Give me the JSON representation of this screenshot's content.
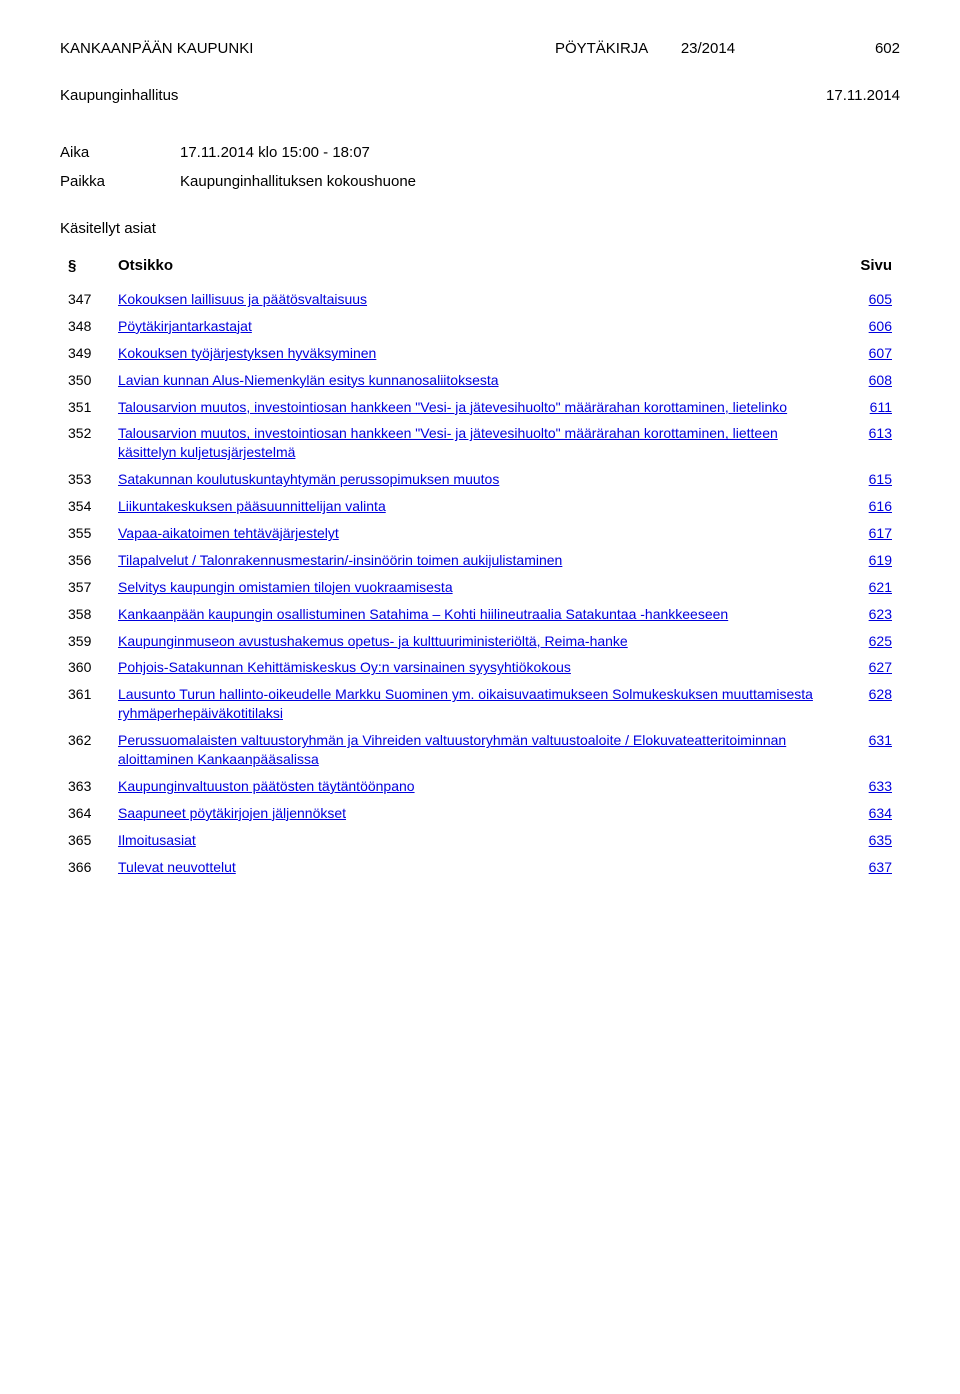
{
  "header": {
    "org": "KANKAANPÄÄN KAUPUNKI",
    "doc_type": "PÖYTÄKIRJA",
    "doc_num": "23/2014",
    "page_num": "602",
    "committee": "Kaupunginhallitus",
    "date": "17.11.2014"
  },
  "meeting": {
    "time_label": "Aika",
    "time_value": "17.11.2014 klo 15:00 - 18:07",
    "place_label": "Paikka",
    "place_value": "Kaupunginhallituksen kokoushuone"
  },
  "agenda": {
    "section_title": "Käsitellyt asiat",
    "columns": {
      "section": "§",
      "title": "Otsikko",
      "page": "Sivu"
    },
    "items": [
      {
        "num": "347",
        "title": "Kokouksen laillisuus ja päätösvaltaisuus",
        "page": "605"
      },
      {
        "num": "348",
        "title": "Pöytäkirjantarkastajat",
        "page": "606"
      },
      {
        "num": "349",
        "title": "Kokouksen työjärjestyksen hyväksyminen",
        "page": "607"
      },
      {
        "num": "350",
        "title": "Lavian kunnan Alus-Niemenkylän esitys kunnanosaliitoksesta",
        "page": "608"
      },
      {
        "num": "351",
        "title": "Talousarvion muutos, investointiosan hankkeen \"Vesi- ja jätevesihuolto\" määrärahan korottaminen, lietelinko",
        "page": "611"
      },
      {
        "num": "352",
        "title": "Talousarvion muutos, investointiosan hankkeen \"Vesi- ja jätevesihuolto\" määrärahan korottaminen, lietteen käsittelyn kuljetusjärjestelmä",
        "page": "613"
      },
      {
        "num": "353",
        "title": "Satakunnan koulutuskuntayhtymän perussopimuksen muutos",
        "page": "615"
      },
      {
        "num": "354",
        "title": "Liikuntakeskuksen pääsuunnittelijan valinta",
        "page": "616"
      },
      {
        "num": "355",
        "title": "Vapaa-aikatoimen tehtäväjärjestelyt",
        "page": "617"
      },
      {
        "num": "356",
        "title": "Tilapalvelut / Talonrakennusmestarin/-insinöörin toimen aukijulistaminen",
        "page": "619"
      },
      {
        "num": "357",
        "title": "Selvitys kaupungin omistamien tilojen vuokraamisesta",
        "page": "621"
      },
      {
        "num": "358",
        "title": "Kankaanpään kaupungin osallistuminen Satahima – Kohti hiilineutraalia Satakuntaa -hankkeeseen",
        "page": "623"
      },
      {
        "num": "359",
        "title": "Kaupunginmuseon avustushakemus opetus- ja kulttuuriministeriöltä, Reima-hanke",
        "page": "625"
      },
      {
        "num": "360",
        "title": "Pohjois-Satakunnan Kehittämiskeskus Oy:n varsinainen syysyhtiökokous",
        "page": "627"
      },
      {
        "num": "361",
        "title": "Lausunto Turun hallinto-oikeudelle Markku Suominen ym. oikaisuvaatimukseen Solmukeskuksen muuttamisesta ryhmäperhepäiväkotitilaksi",
        "page": "628"
      },
      {
        "num": "362",
        "title": "Perussuomalaisten valtuustoryhmän ja Vihreiden valtuustoryhmän valtuustoaloite / Elokuvateatteritoiminnan aloittaminen Kankaanpääsalissa",
        "page": "631"
      },
      {
        "num": "363",
        "title": "Kaupunginvaltuuston päätösten täytäntöönpano",
        "page": "633"
      },
      {
        "num": "364",
        "title": "Saapuneet pöytäkirjojen jäljennökset",
        "page": "634"
      },
      {
        "num": "365",
        "title": "Ilmoitusasiat",
        "page": "635"
      },
      {
        "num": "366",
        "title": "Tulevat neuvottelut",
        "page": "637"
      }
    ]
  },
  "styles": {
    "background_color": "#ffffff",
    "text_color": "#000000",
    "link_color": "#0000dd",
    "body_fontsize": 14,
    "header_fontsize": 15
  }
}
